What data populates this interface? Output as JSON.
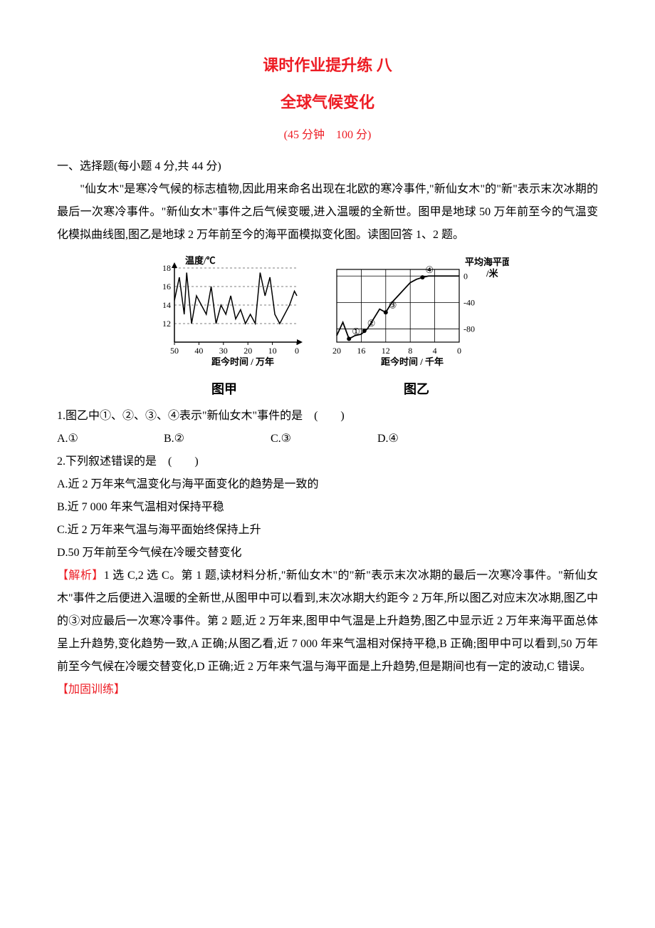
{
  "header": {
    "title_main": "课时作业提升练 八",
    "title_sub": "全球气候变化",
    "time_score": "(45 分钟　100 分)"
  },
  "section_mc": "一、选择题(每小题 4 分,共 44 分)",
  "passage": "　　\"仙女木\"是寒冷气候的标志植物,因此用来命名出现在北欧的寒冷事件,\"新仙女木\"的\"新\"表示末次冰期的最后一次寒冷事件。\"新仙女木\"事件之后气候变暖,进入温暖的全新世。图甲是地球 50 万年前至今的气温变化模拟曲线图,图乙是地球 2 万年前至今的海平面模拟变化图。读图回答 1、2 题。",
  "chartA": {
    "type": "line",
    "caption": "图甲",
    "y_label": "温度/℃",
    "x_label": "距今时间 / 万年",
    "y_ticks": [
      12,
      14,
      16,
      18
    ],
    "x_ticks": [
      50,
      40,
      30,
      20,
      10,
      0
    ],
    "ylim": [
      10,
      18
    ],
    "xlim": [
      50,
      0
    ],
    "series_color": "#000000",
    "grid_color": "#000000",
    "background_color": "#ffffff",
    "points": [
      [
        50,
        14.5
      ],
      [
        48,
        17
      ],
      [
        46,
        13
      ],
      [
        45,
        17.5
      ],
      [
        43,
        12
      ],
      [
        41,
        15
      ],
      [
        39,
        14
      ],
      [
        37,
        13
      ],
      [
        35,
        16
      ],
      [
        33,
        12
      ],
      [
        31,
        14
      ],
      [
        29,
        13
      ],
      [
        27,
        15
      ],
      [
        25,
        12.5
      ],
      [
        23,
        13.5
      ],
      [
        21,
        12
      ],
      [
        19,
        13
      ],
      [
        17,
        12
      ],
      [
        15,
        17.5
      ],
      [
        13,
        15
      ],
      [
        11,
        17
      ],
      [
        9,
        13
      ],
      [
        7,
        12
      ],
      [
        5,
        13
      ],
      [
        3,
        14
      ],
      [
        1,
        15.5
      ],
      [
        0,
        15
      ]
    ]
  },
  "chartB": {
    "type": "line",
    "caption": "图乙",
    "y_label_top": "平均海平面",
    "y_label_unit": "/米",
    "x_label": "距今时间 / 千年",
    "y_ticks": [
      0,
      -40,
      -80
    ],
    "x_ticks": [
      20,
      16,
      12,
      8,
      4,
      0
    ],
    "ylim": [
      -100,
      10
    ],
    "xlim": [
      20,
      0
    ],
    "series_color": "#000000",
    "grid_color": "#000000",
    "background_color": "#ffffff",
    "points": [
      [
        20,
        -90
      ],
      [
        19,
        -70
      ],
      [
        18,
        -95
      ],
      [
        17,
        -90
      ],
      [
        16,
        -88
      ],
      [
        15,
        -80
      ],
      [
        14,
        -65
      ],
      [
        13,
        -50
      ],
      [
        12,
        -55
      ],
      [
        11,
        -40
      ],
      [
        10,
        -30
      ],
      [
        9,
        -20
      ],
      [
        8,
        -10
      ],
      [
        7,
        -5
      ],
      [
        6,
        -2
      ],
      [
        5,
        0
      ],
      [
        4,
        0
      ],
      [
        3,
        0
      ],
      [
        2,
        0
      ],
      [
        1,
        0
      ],
      [
        0,
        0
      ]
    ],
    "markers": [
      {
        "label": "①",
        "x": 18,
        "y": -95
      },
      {
        "label": "②",
        "x": 15.5,
        "y": -83
      },
      {
        "label": "③",
        "x": 12,
        "y": -55
      },
      {
        "label": "④",
        "x": 6,
        "y": -2
      }
    ]
  },
  "q1": {
    "stem": "1.图乙中①、②、③、④表示\"新仙女木\"事件的是　(　　)",
    "opts": {
      "A": "A.①",
      "B": "B.②",
      "C": "C.③",
      "D": "D.④"
    }
  },
  "q2": {
    "stem": "2.下列叙述错误的是　(　　)",
    "opts": {
      "A": "A.近 2 万年来气温变化与海平面变化的趋势是一致的",
      "B": "B.近 7 000 年来气温相对保持平稳",
      "C": "C.近 2 万年来气温与海平面始终保持上升",
      "D": "D.50 万年前至今气候在冷暖交替变化"
    }
  },
  "analysis": {
    "label": "【解析】",
    "body": "1 选 C,2 选 C。第 1 题,读材料分析,\"新仙女木\"的\"新\"表示末次冰期的最后一次寒冷事件。\"新仙女木\"事件之后便进入温暖的全新世,从图甲中可以看到,末次冰期大约距今 2 万年,所以图乙对应末次冰期,图乙中的③对应最后一次寒冷事件。第 2 题,近 2 万年来,图甲中气温是上升趋势,图乙中显示近 2 万年来海平面总体呈上升趋势,变化趋势一致,A 正确;从图乙看,近 7 000 年来气温相对保持平稳,B 正确;图甲中可以看到,50 万年前至今气候在冷暖交替变化,D 正确;近 2 万年来气温与海平面是上升趋势,但是期间也有一定的波动,C 错误。"
  },
  "extra_label": "【加固训练】"
}
